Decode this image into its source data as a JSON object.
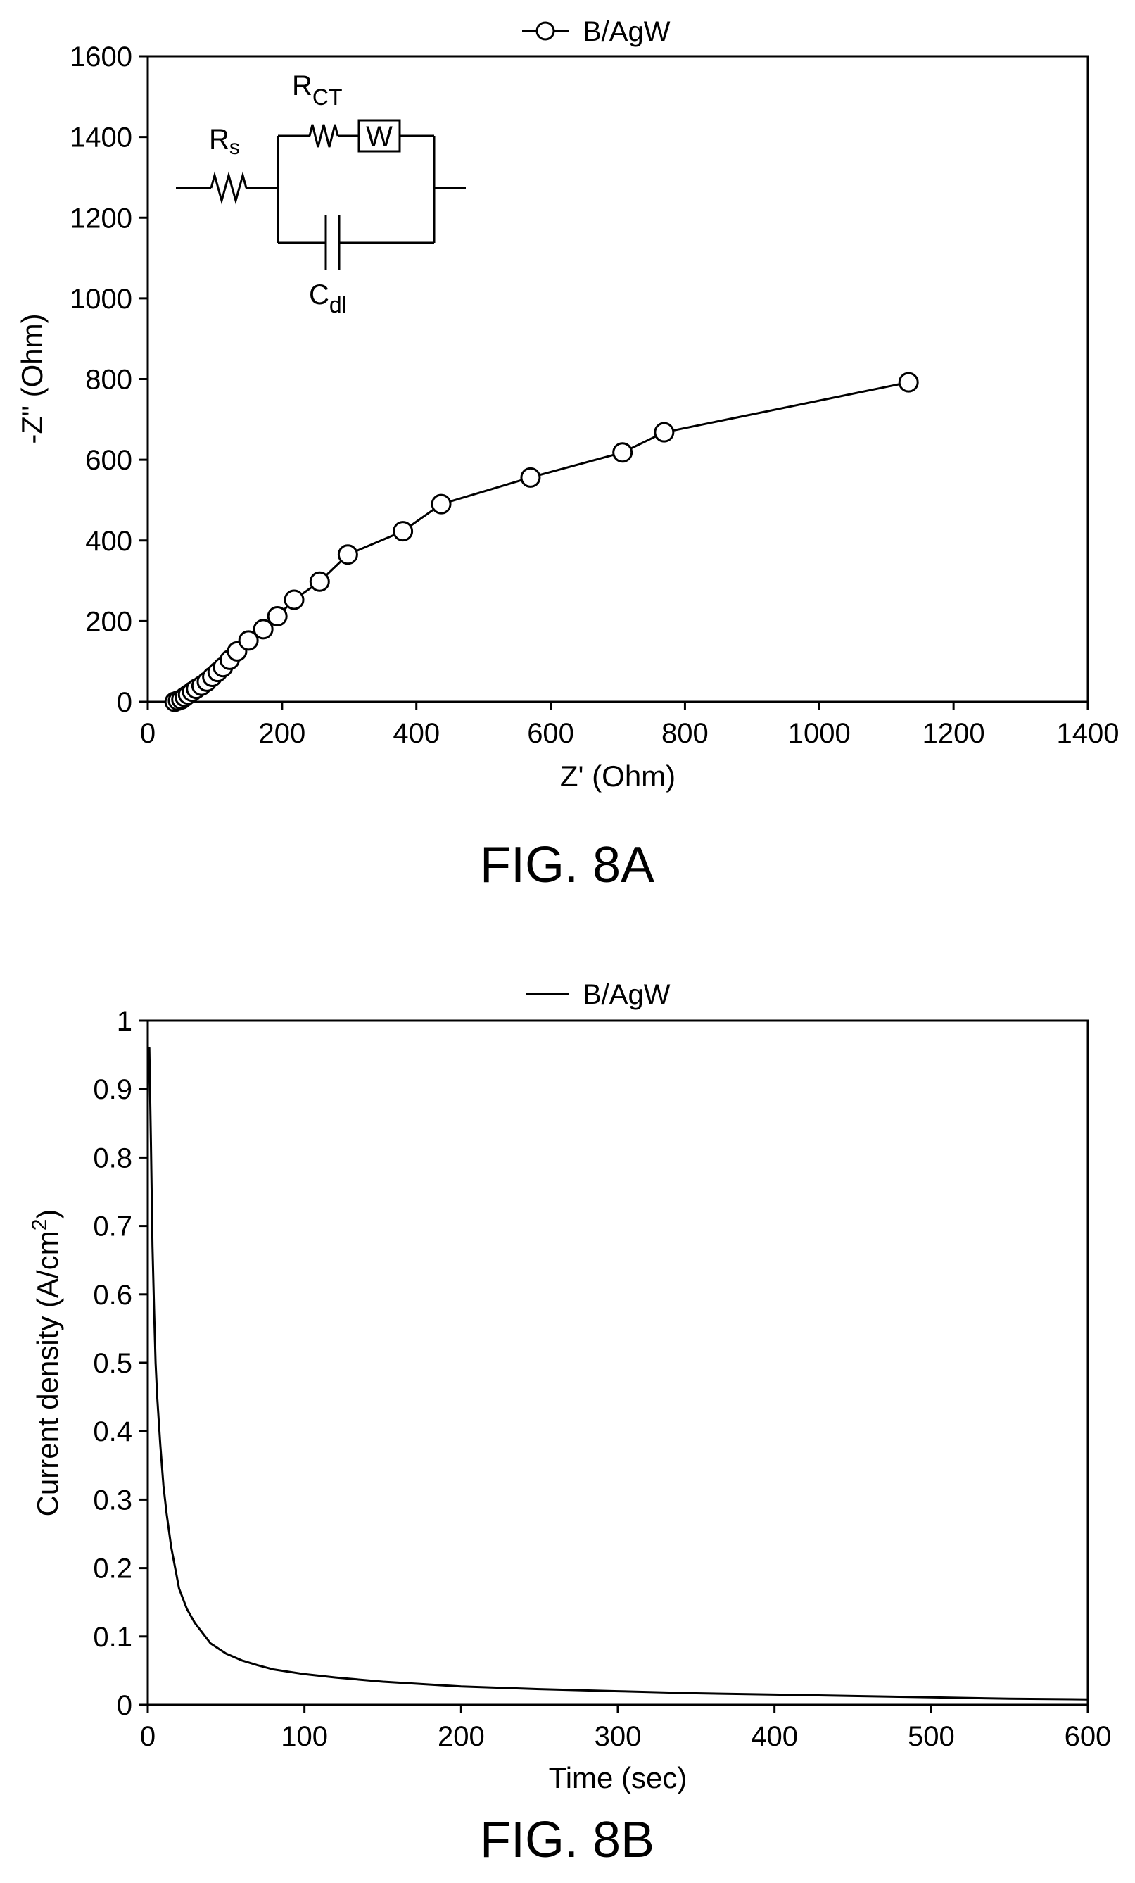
{
  "chart_data": [
    {
      "type": "line",
      "caption": "FIG. 8A",
      "xlabel": "Z' (Ohm)",
      "ylabel": "-Z\" (Ohm)",
      "xlim": [
        0,
        1400
      ],
      "ylim": [
        0,
        1600
      ],
      "xticks": [
        0,
        200,
        400,
        600,
        800,
        1000,
        1200,
        1400
      ],
      "yticks": [
        0,
        200,
        400,
        600,
        800,
        1000,
        1200,
        1400,
        1600
      ],
      "grid": false,
      "legend_position": "top-center",
      "marker": "open-circle",
      "series": [
        {
          "name": "B/AgW",
          "points": [
            [
              40,
              0
            ],
            [
              45,
              3
            ],
            [
              50,
              6
            ],
            [
              55,
              12
            ],
            [
              60,
              18
            ],
            [
              66,
              25
            ],
            [
              72,
              32
            ],
            [
              80,
              40
            ],
            [
              88,
              50
            ],
            [
              96,
              62
            ],
            [
              104,
              74
            ],
            [
              112,
              86
            ],
            [
              122,
              104
            ],
            [
              133,
              125
            ],
            [
              150,
              152
            ],
            [
              172,
              180
            ],
            [
              193,
              212
            ],
            [
              218,
              253
            ],
            [
              256,
              298
            ],
            [
              298,
              365
            ],
            [
              380,
              423
            ],
            [
              437,
              490
            ],
            [
              570,
              556
            ],
            [
              707,
              618
            ],
            [
              769,
              668
            ],
            [
              1133,
              792
            ]
          ]
        }
      ],
      "inset_circuit": {
        "labels": {
          "rs": "R",
          "rs_sub": "s",
          "rct": "R",
          "rct_sub": "CT",
          "warburg": "W",
          "cdl": "C",
          "cdl_sub": "dl"
        }
      }
    },
    {
      "type": "line",
      "caption": "FIG. 8B",
      "xlabel": "Time (sec)",
      "ylabel": "Current density (A/cm",
      "ylabel_sup": "2",
      "ylabel_close": ")",
      "xlim": [
        0,
        600
      ],
      "ylim": [
        0,
        1
      ],
      "xticks": [
        0,
        100,
        200,
        300,
        400,
        500,
        600
      ],
      "yticks": [
        0,
        0.1,
        0.2,
        0.3,
        0.4,
        0.5,
        0.6,
        0.7,
        0.8,
        0.9,
        1
      ],
      "grid": false,
      "legend_position": "top-center",
      "series": [
        {
          "name": "B/AgW",
          "points": [
            [
              0,
              0.93
            ],
            [
              1,
              0.96
            ],
            [
              2,
              0.82
            ],
            [
              3,
              0.67
            ],
            [
              4,
              0.58
            ],
            [
              5,
              0.5
            ],
            [
              6,
              0.45
            ],
            [
              8,
              0.38
            ],
            [
              10,
              0.32
            ],
            [
              12,
              0.28
            ],
            [
              15,
              0.23
            ],
            [
              20,
              0.17
            ],
            [
              25,
              0.14
            ],
            [
              30,
              0.12
            ],
            [
              40,
              0.09
            ],
            [
              50,
              0.075
            ],
            [
              60,
              0.065
            ],
            [
              70,
              0.058
            ],
            [
              80,
              0.052
            ],
            [
              100,
              0.045
            ],
            [
              120,
              0.04
            ],
            [
              150,
              0.034
            ],
            [
              200,
              0.027
            ],
            [
              250,
              0.023
            ],
            [
              300,
              0.02
            ],
            [
              350,
              0.017
            ],
            [
              400,
              0.015
            ],
            [
              450,
              0.013
            ],
            [
              500,
              0.011
            ],
            [
              550,
              0.009
            ],
            [
              600,
              0.008
            ]
          ]
        }
      ]
    }
  ]
}
